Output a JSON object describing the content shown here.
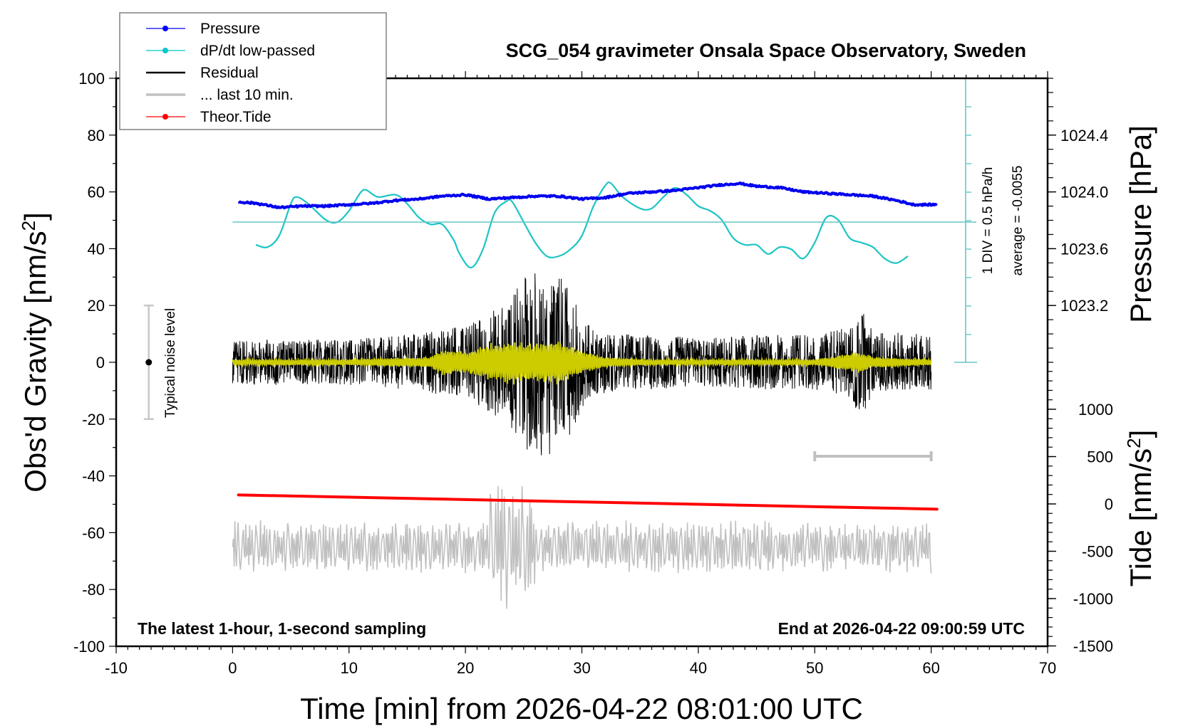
{
  "chart_data": {
    "type": "line",
    "title": "SCG_054 gravimeter Onsala Space Observatory, Sweden",
    "xlabel": "Time [min] from 2026-04-22 08:01:00 UTC",
    "ylabel": "Obs'd Gravity [nm/s",
    "ylabel_sup": "2",
    "ylabel_close": "]",
    "right_ylabel_pressure": "Pressure [hPa]",
    "right_ylabel_tide": "Tide [nm/s",
    "right_ylabel_tide_sup": "2",
    "right_ylabel_tide_close": "]",
    "xlim": [
      -10,
      70
    ],
    "ylim": [
      -100,
      100
    ],
    "pressure_ylim": [
      1022.8,
      1024.8
    ],
    "tide_ylim": [
      -1500,
      1500
    ],
    "x_ticks": [
      "-10",
      "0",
      "10",
      "20",
      "30",
      "40",
      "50",
      "60",
      "70"
    ],
    "x_tick_values": [
      -10,
      0,
      10,
      20,
      30,
      40,
      50,
      60,
      70
    ],
    "y_ticks": [
      "100",
      "80",
      "60",
      "40",
      "20",
      "0",
      "-20",
      "-40",
      "-60",
      "-80",
      "-100"
    ],
    "y_tick_values": [
      100,
      80,
      60,
      40,
      20,
      0,
      -20,
      -40,
      -60,
      -80,
      -100
    ],
    "pressure_ticks": [
      "1024.4",
      "1024.0",
      "1023.6",
      "1023.2"
    ],
    "pressure_tick_values": [
      1024.4,
      1024.0,
      1023.6,
      1023.2
    ],
    "tide_ticks": [
      "1000",
      "500",
      "0",
      "-500",
      "-1000",
      "-1500"
    ],
    "tide_tick_values": [
      1000,
      500,
      0,
      -500,
      -1000,
      -1500
    ],
    "grid": false,
    "legend": {
      "placement": "top-left",
      "entries": [
        {
          "label": "Pressure",
          "color": "#0000ff",
          "marker": "dot"
        },
        {
          "label": "dP/dt low-passed",
          "color": "#00c8c8",
          "marker": "dot"
        },
        {
          "label": "Residual",
          "color": "#000000",
          "marker": "none"
        },
        {
          "label": "... last 10 min.",
          "color": "#c0c0c0",
          "marker": "none"
        },
        {
          "label": "Theor.Tide",
          "color": "#ff0000",
          "marker": "dot"
        }
      ]
    },
    "annotations": {
      "dpdt_scale": "1 DIV = 0.5 hPa/h",
      "dpdt_average": "average = -0.0055",
      "noise_label": "Typical noise level",
      "noise_level_range": [
        -20,
        20
      ],
      "last10_marker_range": [
        50,
        60
      ],
      "bottom_left": "The latest 1-hour, 1-second sampling",
      "bottom_right": "End at 2026-04-22 09:00:59 UTC"
    },
    "series": [
      {
        "name": "Pressure",
        "unit": "hPa",
        "color": "#0000ff",
        "x": [
          0.5,
          2,
          4,
          6,
          8,
          10,
          12,
          14,
          16,
          18,
          20,
          22,
          24,
          26,
          28,
          30,
          32,
          34,
          36,
          38,
          40,
          42,
          43.5,
          45,
          47,
          49,
          51,
          53,
          55,
          57,
          58.5,
          60.5
        ],
        "y": [
          1023.93,
          1023.92,
          1023.89,
          1023.9,
          1023.9,
          1023.91,
          1023.92,
          1023.94,
          1023.95,
          1023.97,
          1023.98,
          1023.95,
          1023.96,
          1023.97,
          1023.97,
          1023.95,
          1023.96,
          1023.99,
          1024.0,
          1024.01,
          1024.03,
          1024.05,
          1024.06,
          1024.04,
          1024.03,
          1024.0,
          1023.99,
          1023.98,
          1023.97,
          1023.94,
          1023.91,
          1023.91
        ]
      },
      {
        "name": "dP/dt low-passed",
        "unit": "div (1 DIV = 0.5 hPa/h)",
        "color": "#00c8c8",
        "x": [
          2,
          3,
          4,
          5,
          5.5,
          6.5,
          8,
          9,
          10,
          11,
          11.5,
          12.5,
          14,
          15,
          16,
          17,
          18,
          19,
          19.5,
          20.5,
          21.5,
          22.5,
          23.5,
          24,
          25,
          26,
          27,
          28,
          29,
          30,
          31,
          32,
          32.5,
          33.5,
          35,
          36,
          37,
          38,
          39,
          40,
          41,
          42,
          43,
          44,
          45,
          46,
          47,
          48,
          49,
          50,
          51,
          52,
          53,
          54,
          55,
          56,
          57,
          58
        ],
        "y": [
          -1.0,
          -1.1,
          -0.6,
          0.8,
          1.1,
          0.8,
          0.1,
          0.0,
          0.5,
          1.3,
          1.4,
          1.1,
          1.2,
          0.8,
          0.2,
          -0.1,
          -0.1,
          -0.8,
          -1.4,
          -2.0,
          -1.2,
          0.4,
          0.9,
          0.9,
          0.0,
          -0.9,
          -1.5,
          -1.5,
          -1.2,
          -0.6,
          0.7,
          1.6,
          1.7,
          1.1,
          0.6,
          0.6,
          1.1,
          1.5,
          1.2,
          0.7,
          0.5,
          0.1,
          -0.7,
          -1.0,
          -1.0,
          -1.4,
          -1.1,
          -1.2,
          -1.6,
          -0.9,
          0.2,
          0.1,
          -0.7,
          -0.9,
          -1.1,
          -1.6,
          -1.8,
          -1.5
        ]
      },
      {
        "name": "Residual",
        "unit": "nm/s2",
        "color": "#000000",
        "x_range": [
          0,
          60
        ],
        "noise_envelope": {
          "x": [
            0,
            10,
            15,
            20,
            22,
            24,
            25,
            26,
            27,
            28,
            29,
            30,
            31,
            35,
            40,
            45,
            50,
            53,
            54,
            55,
            60
          ],
          "amplitude": [
            10,
            10,
            12,
            16,
            22,
            30,
            38,
            40,
            42,
            40,
            32,
            20,
            14,
            12,
            11,
            12,
            12,
            16,
            24,
            14,
            12
          ]
        },
        "min": -46,
        "max": 47
      },
      {
        "name": "Residual low-passed",
        "unit": "nm/s2",
        "color": "#cccc00",
        "x_range": [
          0,
          60
        ],
        "envelope": {
          "x": [
            0,
            10,
            17,
            18,
            20,
            22,
            24,
            26,
            28,
            30,
            32,
            35,
            40,
            50,
            54,
            55,
            60
          ],
          "amplitude": [
            1,
            1,
            2,
            5,
            4,
            7,
            8,
            7,
            8,
            4,
            2,
            1,
            1,
            1,
            4,
            2,
            1
          ]
        }
      },
      {
        "name": "... last 10 min.",
        "unit": "nm/s2",
        "color": "#c0c0c0",
        "x_range": [
          0,
          60
        ],
        "offset": -65,
        "amplitude_range": [
          -87,
          -36
        ]
      },
      {
        "name": "Theor.Tide",
        "unit": "nm/s2",
        "color": "#ff0000",
        "x": [
          0.5,
          60.5
        ],
        "y": [
          95,
          -55
        ]
      }
    ]
  }
}
